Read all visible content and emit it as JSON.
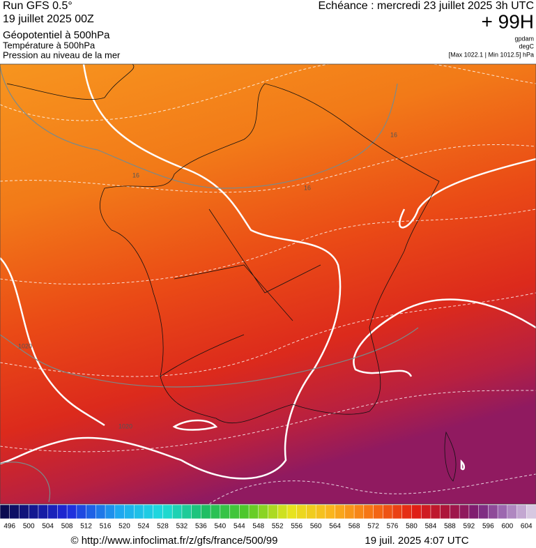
{
  "header": {
    "run": "Run GFS 0.5°",
    "date": "19 juillet 2025 00Z",
    "field1": "Géopotentiel à 500hPa",
    "field2": "Température à 500hPa",
    "field3": "Pression au niveau de la mer",
    "valid": "Echéance : mercredi 23 juillet 2025 3h UTC",
    "lead": "+ 99H",
    "unit1": "gpdam",
    "unit2": "degC",
    "pressure": "[Max 1022.1 | Min 1012.5] hPa"
  },
  "map": {
    "contour_labels": [
      "16",
      "16",
      "16",
      "1020",
      "1020"
    ]
  },
  "legend": {
    "labels": [
      496,
      500,
      504,
      508,
      512,
      516,
      520,
      524,
      528,
      532,
      536,
      540,
      544,
      548,
      552,
      556,
      560,
      564,
      568,
      572,
      576,
      580,
      584,
      588,
      592,
      596,
      600,
      604
    ]
  },
  "footer": {
    "source": "© http://www.infoclimat.fr/z/gfs/france/500/99",
    "generated": "19 juil. 2025  4:07 UTC"
  }
}
